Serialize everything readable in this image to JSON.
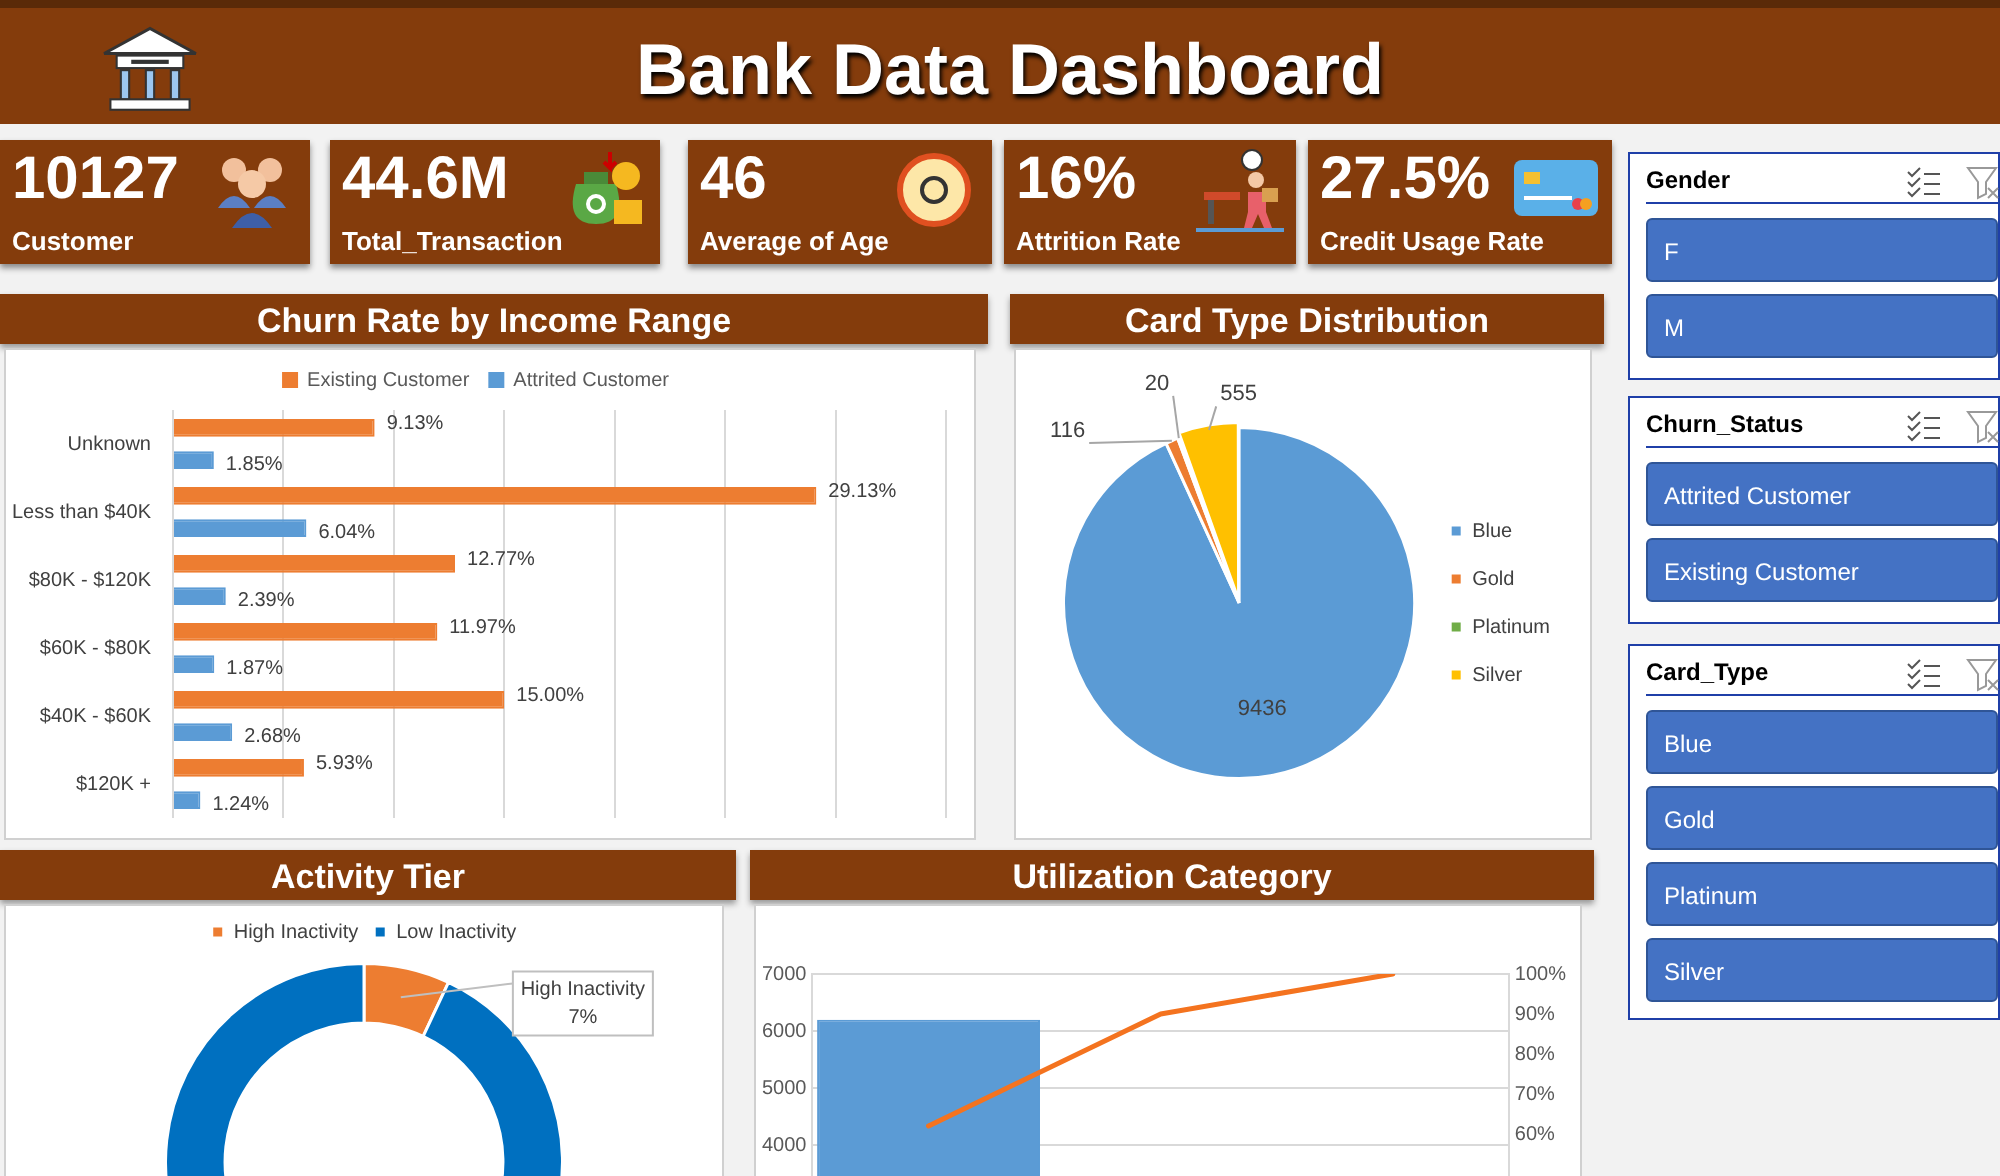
{
  "chart_data": [
    {
      "type": "other",
      "title": "Bank Data Dashboard",
      "annotations": [
        "10127",
        "Customer",
        "44.6M",
        "Total_Transaction",
        "46",
        "Average of Age",
        "16%",
        "Attrition Rate",
        "27.5%",
        "Credit Usage Rate"
      ]
    },
    {
      "type": "bar",
      "title": "Churn Rate by Income Range",
      "orientation": "horizontal",
      "categories": [
        "Unknown",
        "Less than $40K",
        "$80K - $120K",
        "$60K - $80K",
        "$40K - $60K",
        "$120K +"
      ],
      "series": [
        {
          "name": "Existing Customer",
          "color": "#ed7d31",
          "values": [
            9.13,
            29.13,
            12.77,
            11.97,
            15.0,
            5.93
          ],
          "value_labels": [
            "9.13%",
            "29.13%",
            "12.77%",
            "11.97%",
            "15.00%",
            "5.93%"
          ]
        },
        {
          "name": "Attrited Customer",
          "color": "#5b9bd5",
          "values": [
            1.85,
            6.04,
            2.39,
            1.87,
            2.68,
            1.24
          ],
          "value_labels": [
            "1.85%",
            "6.04%",
            "2.39%",
            "1.87%",
            "2.68%",
            "1.24%"
          ]
        }
      ],
      "xlim": [
        0,
        35
      ],
      "xticks": [
        0,
        5,
        10,
        15,
        20,
        25,
        30,
        35
      ],
      "tick_labels": "y",
      "grid": "x",
      "legend": "top"
    },
    {
      "type": "pie",
      "title": "Card Type Distribution",
      "categories": [
        "Blue",
        "Gold",
        "Platinum",
        "Silver"
      ],
      "values": [
        9436,
        116,
        20,
        555
      ],
      "colors": [
        "#5b9bd5",
        "#ed7d31",
        "#70ad47",
        "#ffc000"
      ],
      "data_labels": true,
      "legend": "right"
    },
    {
      "type": "other",
      "title": "Gender",
      "categories": [
        "F",
        "M"
      ]
    },
    {
      "type": "other",
      "title": "Churn_Status",
      "categories": [
        "Attrited Customer",
        "Existing Customer"
      ]
    },
    {
      "type": "other",
      "title": "Card_Type",
      "categories": [
        "Blue",
        "Gold",
        "Platinum",
        "Silver"
      ]
    },
    {
      "type": "donut",
      "title": "Activity Tier",
      "categories": [
        "High Inactivity",
        "Low Inactivity"
      ],
      "values": [
        7,
        93
      ],
      "colors": [
        "#ed7d31",
        "#0070c0"
      ],
      "value_labels": [
        "7%",
        null
      ],
      "legend": "top"
    },
    {
      "type": "bar",
      "title": "Utilization Category",
      "categories": [
        null,
        null,
        null
      ],
      "series": [
        {
          "type": "bar",
          "color": "#5b9bd5",
          "values": [
            6200,
            null,
            null
          ]
        },
        {
          "type": "line",
          "axis": "y2",
          "color": "#f4731f",
          "values": [
            62,
            90,
            100
          ]
        }
      ],
      "ylim": [
        0,
        7000
      ],
      "yticks": [
        4000,
        5000,
        6000,
        7000
      ],
      "y2lim": [
        0,
        100
      ],
      "y2ticks": [
        {
          "value": 60,
          "label": "60%"
        },
        {
          "value": 70,
          "label": "70%"
        },
        {
          "value": 80,
          "label": "80%"
        },
        {
          "value": 90,
          "label": "90%"
        },
        {
          "value": 100,
          "label": "100%"
        }
      ],
      "grid": "y"
    }
  ]
}
